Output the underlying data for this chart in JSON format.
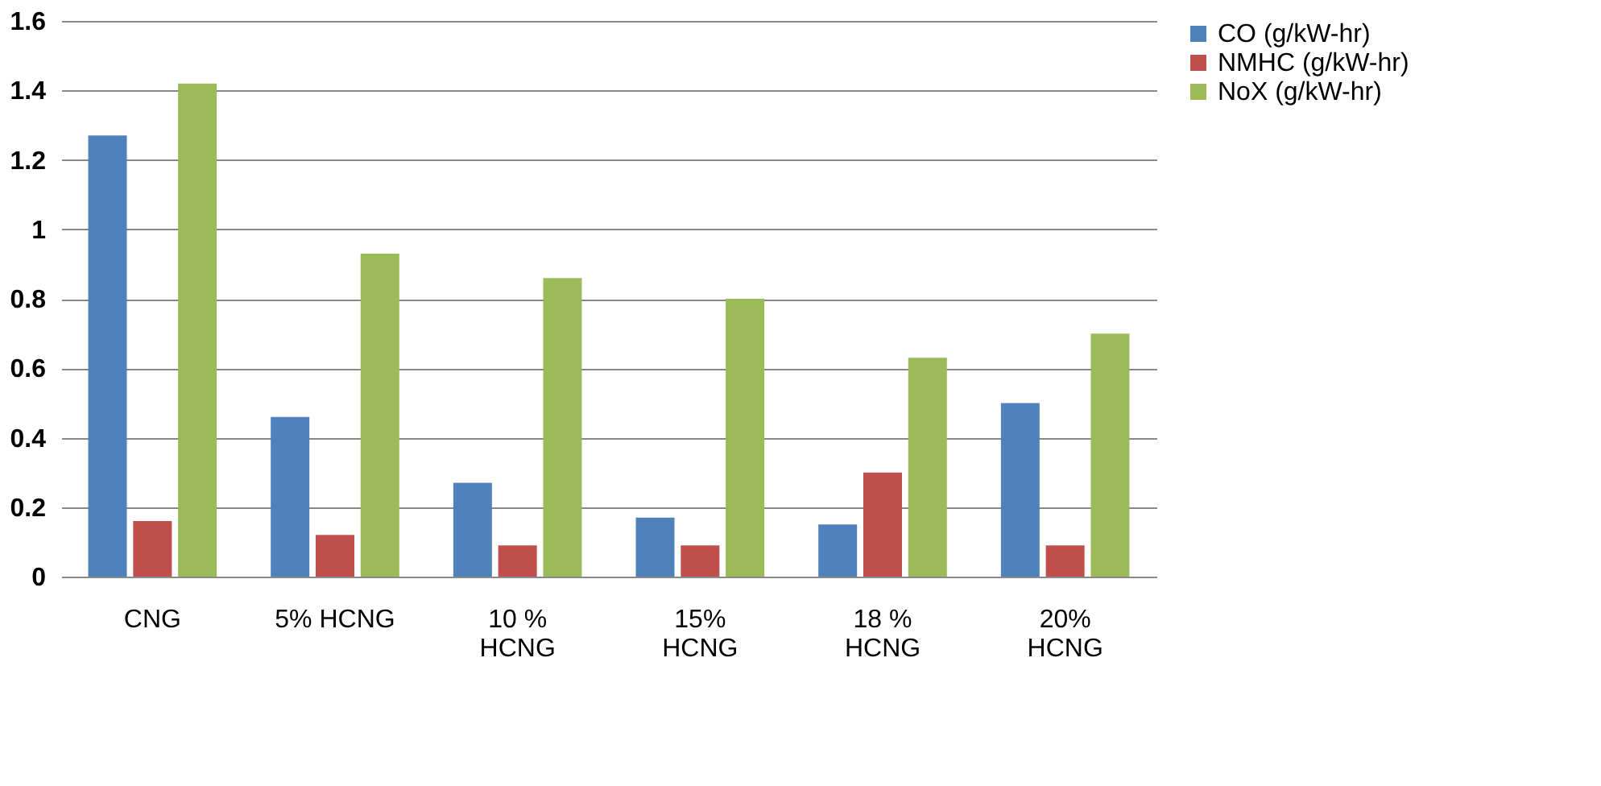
{
  "chart_data": {
    "type": "bar",
    "categories": [
      "CNG",
      "5% HCNG",
      "10 %\nHCNG",
      "15%\nHCNG",
      "18 %\nHCNG",
      "20%\nHCNG"
    ],
    "series": [
      {
        "name": "CO (g/kW-hr)",
        "color": "#4f81bd",
        "values": [
          1.27,
          0.46,
          0.27,
          0.17,
          0.15,
          0.5
        ]
      },
      {
        "name": "NMHC (g/kW-hr)",
        "color": "#c0504d",
        "values": [
          0.16,
          0.12,
          0.09,
          0.09,
          0.3,
          0.09
        ]
      },
      {
        "name": "NoX (g/kW-hr)",
        "color": "#9bbb59",
        "values": [
          1.42,
          0.93,
          0.86,
          0.8,
          0.63,
          0.7
        ]
      }
    ],
    "ylim": [
      0,
      1.6
    ],
    "yticks": [
      0,
      0.2,
      0.4,
      0.6,
      0.8,
      1,
      1.2,
      1.4,
      1.6
    ],
    "grid": "y",
    "legend": "right"
  }
}
